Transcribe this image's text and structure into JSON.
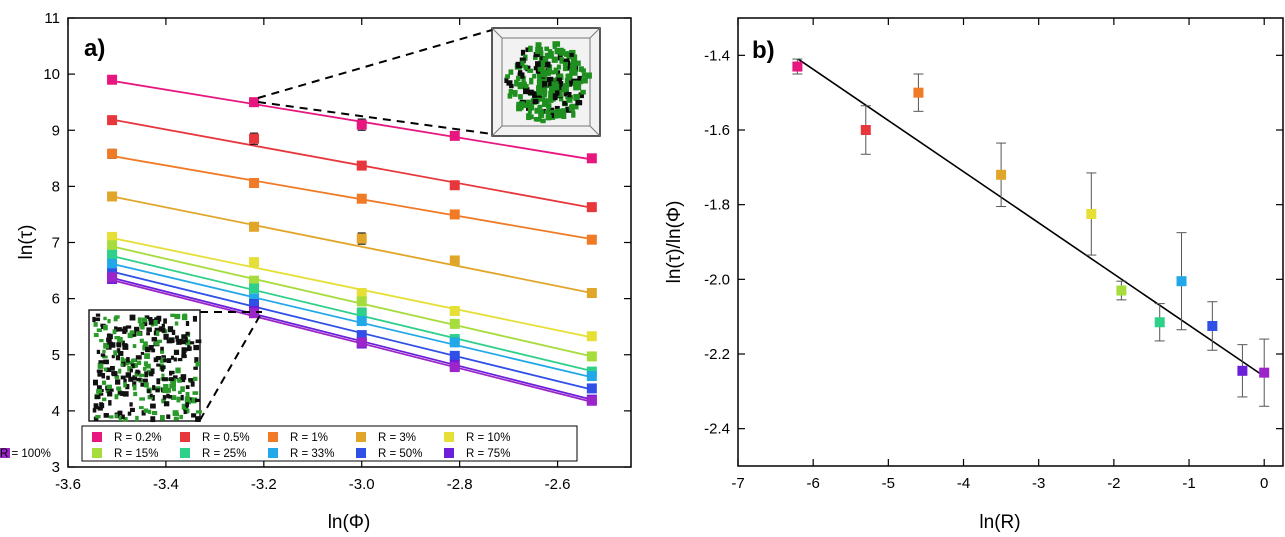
{
  "chart_data": [
    {
      "type": "scatter",
      "panel_label": "a)",
      "xlabel": "ln(Φ)",
      "ylabel": "ln(τ)",
      "xlim": [
        -3.6,
        -2.45
      ],
      "ylim": [
        3,
        11
      ],
      "xticks": [
        -3.6,
        -3.4,
        -3.2,
        -3.0,
        -2.8,
        -2.6
      ],
      "xtick_labels": [
        "-3.6",
        "-3.4",
        "-3.2",
        "-3.0",
        "-2.8",
        "-2.6"
      ],
      "yticks": [
        3,
        4,
        5,
        6,
        7,
        8,
        9,
        10,
        11
      ],
      "ytick_labels": [
        "3",
        "4",
        "5",
        "6",
        "7",
        "8",
        "9",
        "10",
        "11"
      ],
      "legend_position": "bottom",
      "x": [
        -3.51,
        -3.22,
        -3.0,
        -2.81,
        -2.53
      ],
      "series": [
        {
          "name": "R = 0.2%",
          "color": "#e8177f",
          "y": [
            9.9,
            9.5,
            9.1,
            8.9,
            8.5
          ],
          "err": [
            0.06,
            0.05,
            0.1,
            0.06,
            0.05
          ],
          "fit": [
            9.88,
            8.48
          ]
        },
        {
          "name": "R = 0.5%",
          "color": "#e8373c",
          "y": [
            9.18,
            8.85,
            8.37,
            8.02,
            7.63
          ],
          "err": [
            0.04,
            0.1,
            0.05,
            0.04,
            0.04
          ],
          "fit": [
            9.19,
            7.62
          ]
        },
        {
          "name": "R = 1%",
          "color": "#f07a26",
          "y": [
            8.58,
            8.06,
            7.78,
            7.5,
            7.05
          ],
          "err": [
            0.08,
            0.04,
            0.04,
            0.04,
            0.04
          ],
          "fit": [
            8.54,
            7.06
          ]
        },
        {
          "name": "R = 3%",
          "color": "#e1a629",
          "y": [
            7.82,
            7.28,
            7.07,
            6.68,
            6.1
          ],
          "err": [
            0.06,
            0.05,
            0.1,
            0.05,
            0.05
          ],
          "fit": [
            7.82,
            6.1
          ]
        },
        {
          "name": "R = 10%",
          "color": "#e6df36",
          "y": [
            7.1,
            6.65,
            6.1,
            5.78,
            5.33
          ],
          "err": [
            0.05,
            0.05,
            0.05,
            0.05,
            0.05
          ],
          "fit": [
            7.08,
            5.31
          ]
        },
        {
          "name": "R = 15%",
          "color": "#a6dc3c",
          "y": [
            6.95,
            6.32,
            5.95,
            5.55,
            4.97
          ],
          "err": [
            0.05,
            0.05,
            0.05,
            0.05,
            0.05
          ],
          "fit": [
            6.93,
            4.97
          ]
        },
        {
          "name": "R = 25%",
          "color": "#2fd08a",
          "y": [
            6.78,
            6.18,
            5.75,
            5.28,
            4.7
          ],
          "err": [
            0.05,
            0.05,
            0.08,
            0.05,
            0.05
          ],
          "fit": [
            6.76,
            4.71
          ]
        },
        {
          "name": "R = 33%",
          "color": "#22a8e8",
          "y": [
            6.62,
            6.0,
            5.6,
            5.22,
            4.62
          ],
          "err": [
            0.05,
            0.05,
            0.05,
            0.05,
            0.05
          ],
          "fit": [
            6.62,
            4.6
          ]
        },
        {
          "name": "R = 50%",
          "color": "#2f4fe6",
          "y": [
            6.45,
            5.9,
            5.35,
            4.98,
            4.4
          ],
          "err": [
            0.06,
            0.08,
            0.05,
            0.05,
            0.05
          ],
          "fit": [
            6.48,
            4.38
          ]
        },
        {
          "name": "R = 75%",
          "color": "#6b1fd8",
          "y": [
            6.35,
            5.78,
            5.2,
            4.82,
            4.2
          ],
          "err": [
            0.05,
            0.05,
            0.05,
            0.05,
            0.05
          ],
          "fit": [
            6.37,
            4.2
          ]
        },
        {
          "name": "R = 100%",
          "color": "#9b25c9",
          "y": [
            6.38,
            5.74,
            5.22,
            4.78,
            4.18
          ],
          "err": [
            0.05,
            0.05,
            0.05,
            0.05,
            0.05
          ],
          "fit": [
            6.33,
            4.16
          ]
        }
      ]
    },
    {
      "type": "scatter",
      "panel_label": "b)",
      "xlabel": "ln(R)",
      "ylabel": "ln(τ)/ln(Φ)",
      "xlim": [
        -7,
        0.25
      ],
      "ylim": [
        -2.5,
        -1.3
      ],
      "xticks": [
        -7,
        -6,
        -5,
        -4,
        -3,
        -2,
        -1,
        0
      ],
      "xtick_labels": [
        "-7",
        "-6",
        "-5",
        "-4",
        "-3",
        "-2",
        "-1",
        "0"
      ],
      "yticks": [
        -2.4,
        -2.2,
        -2.0,
        -1.8,
        -1.6,
        -1.4
      ],
      "ytick_labels": [
        "-2.4",
        "-2.2",
        "-2.0",
        "-1.8",
        "-1.6",
        "-1.4"
      ],
      "fit_line": {
        "x": [
          -6.2,
          0
        ],
        "y": [
          -1.41,
          -2.26
        ]
      },
      "points": [
        {
          "x": -6.21,
          "y": -1.43,
          "err": 0.02,
          "color": "#e8177f"
        },
        {
          "x": -5.3,
          "y": -1.6,
          "err": 0.065,
          "color": "#e8373c"
        },
        {
          "x": -4.6,
          "y": -1.5,
          "err": 0.05,
          "color": "#f07a26"
        },
        {
          "x": -3.5,
          "y": -1.72,
          "err": 0.085,
          "color": "#e1a629"
        },
        {
          "x": -2.3,
          "y": -1.825,
          "err": 0.11,
          "color": "#e6df36"
        },
        {
          "x": -1.9,
          "y": -2.03,
          "err": 0.025,
          "color": "#a6dc3c"
        },
        {
          "x": -1.39,
          "y": -2.115,
          "err": 0.05,
          "color": "#2fd08a"
        },
        {
          "x": -1.1,
          "y": -2.005,
          "err": 0.13,
          "color": "#22a8e8"
        },
        {
          "x": -0.69,
          "y": -2.125,
          "err": 0.065,
          "color": "#2f4fe6"
        },
        {
          "x": -0.29,
          "y": -2.245,
          "err": 0.07,
          "color": "#6b1fd8"
        },
        {
          "x": 0.0,
          "y": -2.25,
          "err": 0.09,
          "color": "#9b25c9"
        }
      ]
    }
  ]
}
